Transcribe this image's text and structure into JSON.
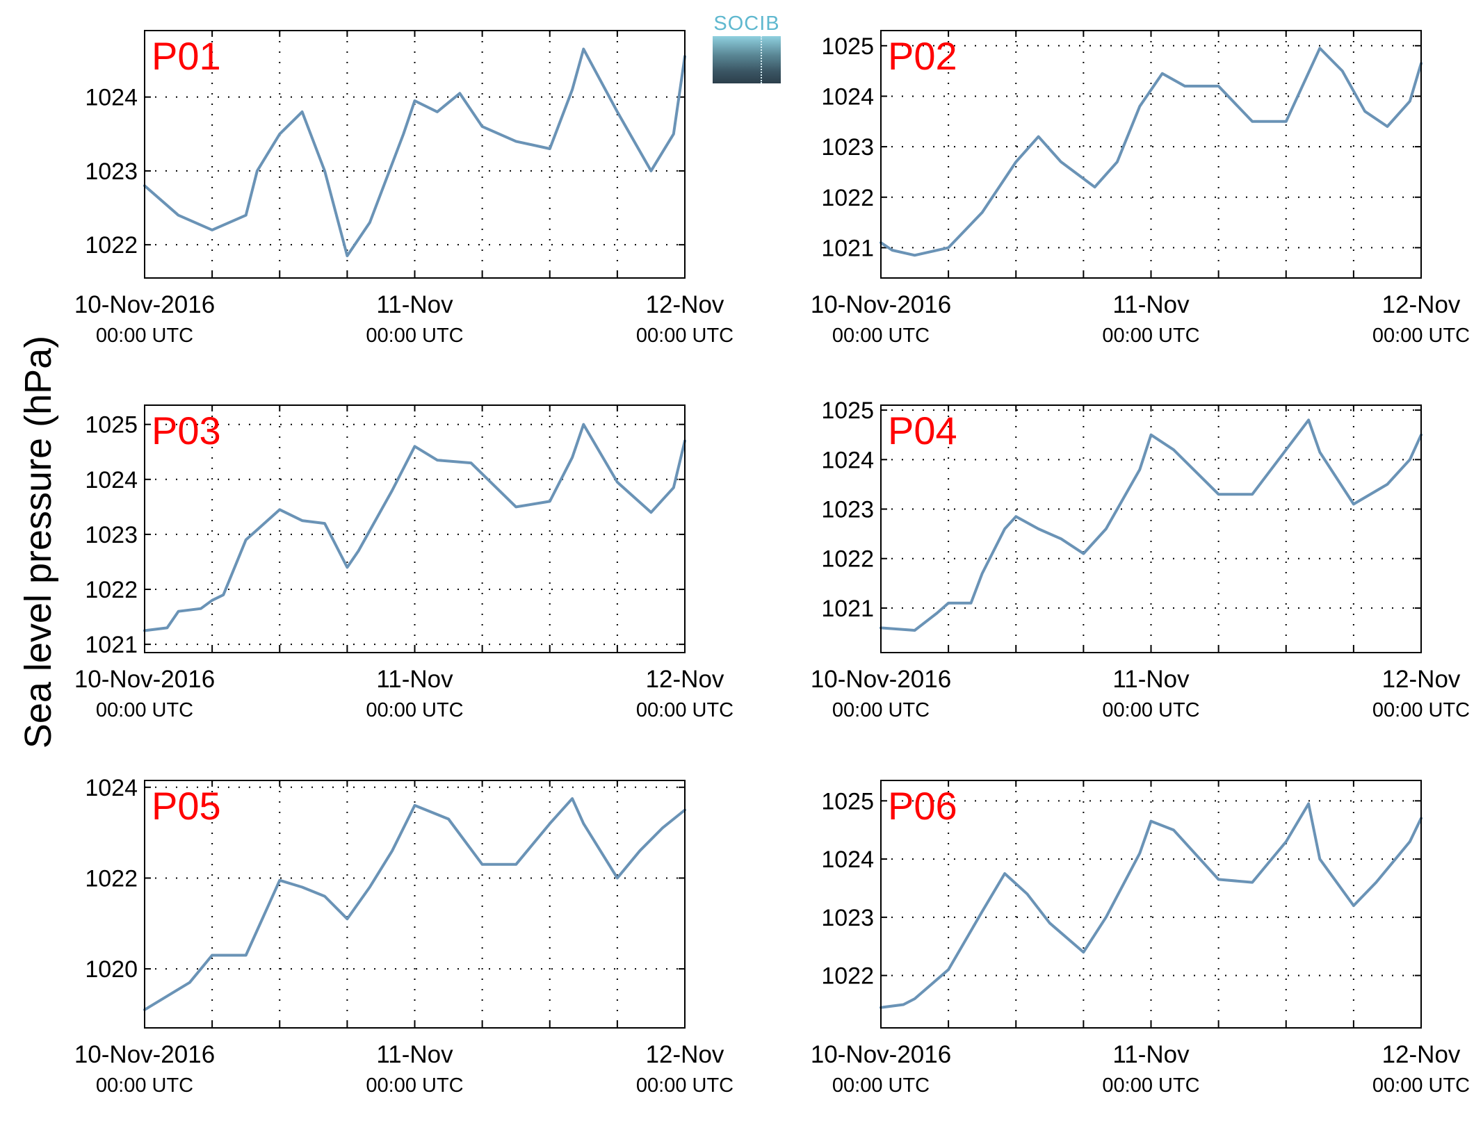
{
  "figure": {
    "ylabel": "Sea level pressure (hPa)",
    "logo_text": "SOCIB"
  },
  "colors": {
    "line": "#6a93b6",
    "panel_label": "#ff0000",
    "axes": "#000000",
    "grid": "#000000"
  },
  "chart_data": [
    {
      "type": "line",
      "label": "P01",
      "x": [
        "2016-11-10T00:00Z",
        "2016-11-10T03:00Z",
        "2016-11-10T06:00Z",
        "2016-11-10T09:00Z",
        "2016-11-10T10:00Z",
        "2016-11-10T12:00Z",
        "2016-11-10T14:00Z",
        "2016-11-10T16:00Z",
        "2016-11-10T18:00Z",
        "2016-11-10T20:00Z",
        "2016-11-10T23:00Z",
        "2016-11-11T00:00Z",
        "2016-11-11T02:00Z",
        "2016-11-11T04:00Z",
        "2016-11-11T06:00Z",
        "2016-11-11T09:00Z",
        "2016-11-11T12:00Z",
        "2016-11-11T14:00Z",
        "2016-11-11T15:00Z",
        "2016-11-11T18:00Z",
        "2016-11-11T21:00Z",
        "2016-11-11T23:00Z",
        "2016-11-12T00:00Z"
      ],
      "y": [
        1022.8,
        1022.4,
        1022.2,
        1022.4,
        1023.0,
        1023.5,
        1023.8,
        1023.0,
        1021.85,
        1022.3,
        1023.5,
        1023.95,
        1023.8,
        1024.05,
        1023.6,
        1023.4,
        1023.3,
        1024.1,
        1024.65,
        1023.8,
        1023.0,
        1023.5,
        1024.55
      ],
      "ylim": [
        1021.55,
        1024.9
      ],
      "yticks": [
        1022,
        1023,
        1024
      ]
    },
    {
      "type": "line",
      "label": "P02",
      "x": [
        "2016-11-10T00:00Z",
        "2016-11-10T01:00Z",
        "2016-11-10T03:00Z",
        "2016-11-10T06:00Z",
        "2016-11-10T09:00Z",
        "2016-11-10T12:00Z",
        "2016-11-10T14:00Z",
        "2016-11-10T16:00Z",
        "2016-11-10T19:00Z",
        "2016-11-10T21:00Z",
        "2016-11-10T23:00Z",
        "2016-11-11T01:00Z",
        "2016-11-11T03:00Z",
        "2016-11-11T06:00Z",
        "2016-11-11T09:00Z",
        "2016-11-11T12:00Z",
        "2016-11-11T15:00Z",
        "2016-11-11T17:00Z",
        "2016-11-11T19:00Z",
        "2016-11-11T21:00Z",
        "2016-11-11T23:00Z",
        "2016-11-12T00:00Z"
      ],
      "y": [
        1021.1,
        1020.95,
        1020.85,
        1021.0,
        1021.7,
        1022.7,
        1023.2,
        1022.7,
        1022.2,
        1022.7,
        1023.8,
        1024.45,
        1024.2,
        1024.2,
        1023.5,
        1023.5,
        1024.95,
        1024.5,
        1023.7,
        1023.4,
        1023.9,
        1024.65
      ],
      "ylim": [
        1020.4,
        1025.3
      ],
      "yticks": [
        1021,
        1022,
        1023,
        1024,
        1025
      ]
    },
    {
      "type": "line",
      "label": "P03",
      "x": [
        "2016-11-10T00:00Z",
        "2016-11-10T02:00Z",
        "2016-11-10T03:00Z",
        "2016-11-10T05:00Z",
        "2016-11-10T06:00Z",
        "2016-11-10T07:00Z",
        "2016-11-10T09:00Z",
        "2016-11-10T12:00Z",
        "2016-11-10T14:00Z",
        "2016-11-10T16:00Z",
        "2016-11-10T18:00Z",
        "2016-11-10T19:00Z",
        "2016-11-10T22:00Z",
        "2016-11-11T00:00Z",
        "2016-11-11T02:00Z",
        "2016-11-11T05:00Z",
        "2016-11-11T09:00Z",
        "2016-11-11T12:00Z",
        "2016-11-11T14:00Z",
        "2016-11-11T15:00Z",
        "2016-11-11T18:00Z",
        "2016-11-11T21:00Z",
        "2016-11-11T23:00Z",
        "2016-11-12T00:00Z"
      ],
      "y": [
        1021.25,
        1021.3,
        1021.6,
        1021.65,
        1021.8,
        1021.9,
        1022.9,
        1023.45,
        1023.25,
        1023.2,
        1022.4,
        1022.7,
        1023.8,
        1024.6,
        1024.35,
        1024.3,
        1023.5,
        1023.6,
        1024.4,
        1025.0,
        1023.95,
        1023.4,
        1023.85,
        1024.7
      ],
      "ylim": [
        1020.85,
        1025.35
      ],
      "yticks": [
        1021,
        1022,
        1023,
        1024,
        1025
      ]
    },
    {
      "type": "line",
      "label": "P04",
      "x": [
        "2016-11-10T00:00Z",
        "2016-11-10T03:00Z",
        "2016-11-10T05:00Z",
        "2016-11-10T06:00Z",
        "2016-11-10T08:00Z",
        "2016-11-10T09:00Z",
        "2016-11-10T11:00Z",
        "2016-11-10T12:00Z",
        "2016-11-10T14:00Z",
        "2016-11-10T16:00Z",
        "2016-11-10T18:00Z",
        "2016-11-10T20:00Z",
        "2016-11-10T23:00Z",
        "2016-11-11T00:00Z",
        "2016-11-11T02:00Z",
        "2016-11-11T06:00Z",
        "2016-11-11T09:00Z",
        "2016-11-11T12:00Z",
        "2016-11-11T14:00Z",
        "2016-11-11T15:00Z",
        "2016-11-11T18:00Z",
        "2016-11-11T21:00Z",
        "2016-11-11T23:00Z",
        "2016-11-12T00:00Z"
      ],
      "y": [
        1020.6,
        1020.55,
        1020.9,
        1021.1,
        1021.1,
        1021.7,
        1022.6,
        1022.85,
        1022.6,
        1022.4,
        1022.1,
        1022.6,
        1023.8,
        1024.5,
        1024.2,
        1023.3,
        1023.3,
        1024.2,
        1024.8,
        1024.15,
        1023.1,
        1023.5,
        1024.0,
        1024.5
      ],
      "ylim": [
        1020.1,
        1025.1
      ],
      "yticks": [
        1021,
        1022,
        1023,
        1024,
        1025
      ]
    },
    {
      "type": "line",
      "label": "P05",
      "x": [
        "2016-11-10T00:00Z",
        "2016-11-10T02:00Z",
        "2016-11-10T04:00Z",
        "2016-11-10T06:00Z",
        "2016-11-10T09:00Z",
        "2016-11-10T12:00Z",
        "2016-11-10T14:00Z",
        "2016-11-10T16:00Z",
        "2016-11-10T18:00Z",
        "2016-11-10T20:00Z",
        "2016-11-10T22:00Z",
        "2016-11-11T00:00Z",
        "2016-11-11T03:00Z",
        "2016-11-11T06:00Z",
        "2016-11-11T09:00Z",
        "2016-11-11T12:00Z",
        "2016-11-11T14:00Z",
        "2016-11-11T15:00Z",
        "2016-11-11T18:00Z",
        "2016-11-11T20:00Z",
        "2016-11-11T22:00Z",
        "2016-11-12T00:00Z"
      ],
      "y": [
        1019.1,
        1019.4,
        1019.7,
        1020.3,
        1020.3,
        1021.95,
        1021.8,
        1021.6,
        1021.1,
        1021.8,
        1022.6,
        1023.6,
        1023.3,
        1022.3,
        1022.3,
        1023.2,
        1023.75,
        1023.2,
        1022.0,
        1022.6,
        1023.1,
        1023.5
      ],
      "ylim": [
        1018.7,
        1024.15
      ],
      "yticks": [
        1020,
        1022,
        1024
      ]
    },
    {
      "type": "line",
      "label": "P06",
      "x": [
        "2016-11-10T00:00Z",
        "2016-11-10T02:00Z",
        "2016-11-10T03:00Z",
        "2016-11-10T06:00Z",
        "2016-11-10T09:00Z",
        "2016-11-10T11:00Z",
        "2016-11-10T13:00Z",
        "2016-11-10T15:00Z",
        "2016-11-10T18:00Z",
        "2016-11-10T20:00Z",
        "2016-11-10T23:00Z",
        "2016-11-11T00:00Z",
        "2016-11-11T02:00Z",
        "2016-11-11T06:00Z",
        "2016-11-11T09:00Z",
        "2016-11-11T12:00Z",
        "2016-11-11T14:00Z",
        "2016-11-11T15:00Z",
        "2016-11-11T18:00Z",
        "2016-11-11T20:00Z",
        "2016-11-11T23:00Z",
        "2016-11-12T00:00Z"
      ],
      "y": [
        1021.45,
        1021.5,
        1021.6,
        1022.1,
        1023.1,
        1023.75,
        1023.4,
        1022.9,
        1022.4,
        1023.0,
        1024.1,
        1024.65,
        1024.5,
        1023.65,
        1023.6,
        1024.3,
        1024.95,
        1024.0,
        1023.2,
        1023.6,
        1024.3,
        1024.7
      ],
      "ylim": [
        1021.1,
        1025.35
      ],
      "yticks": [
        1022,
        1023,
        1024,
        1025
      ]
    }
  ],
  "xaxis": {
    "range": [
      "2016-11-10T00:00Z",
      "2016-11-12T00:00Z"
    ],
    "minor_ticks_hours": [
      6,
      12,
      18,
      24,
      30,
      36,
      42
    ],
    "tick_labels": [
      {
        "date": "10-Nov-2016",
        "time": "00:00 UTC"
      },
      {
        "date": "11-Nov",
        "time": "00:00 UTC"
      },
      {
        "date": "12-Nov",
        "time": "00:00 UTC"
      }
    ]
  }
}
